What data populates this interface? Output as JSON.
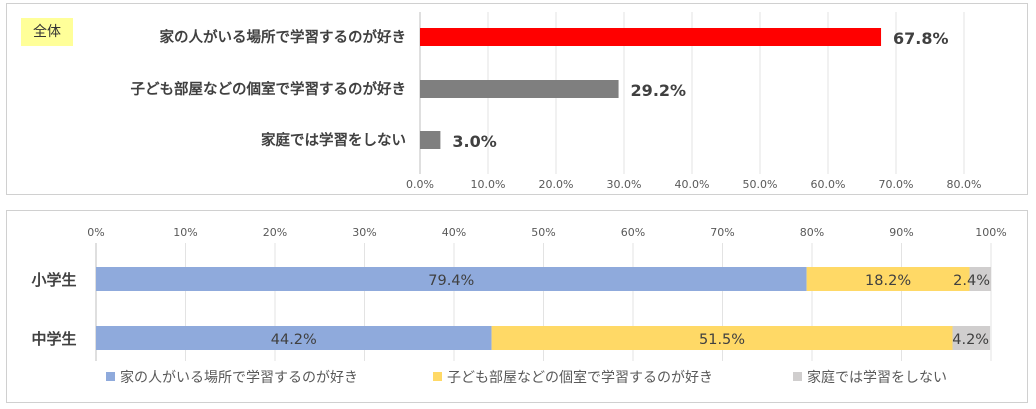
{
  "chart_data": [
    {
      "type": "bar",
      "orientation": "horizontal",
      "badge": "全体",
      "categories": [
        "家の人がいる場所で学習するのが好き",
        "子ども部屋などの個室で学習するのが好き",
        "家庭では学習をしない"
      ],
      "values": [
        67.8,
        29.2,
        3.0
      ],
      "value_labels": [
        "67.8%",
        "29.2%",
        "3.0%"
      ],
      "colors": [
        "#ff0000",
        "#7f7f7f",
        "#7f7f7f"
      ],
      "xlim": [
        0,
        80
      ],
      "ticks": [
        "0.0%",
        "10.0%",
        "20.0%",
        "30.0%",
        "40.0%",
        "50.0%",
        "60.0%",
        "70.0%",
        "80.0%"
      ],
      "grid": true
    },
    {
      "type": "bar",
      "orientation": "horizontal",
      "stacked": true,
      "categories": [
        "小学生",
        "中学生"
      ],
      "series": [
        {
          "name": "家の人がいる場所で学習するのが好き",
          "values": [
            79.4,
            44.2
          ],
          "labels": [
            "79.4%",
            "44.2%"
          ],
          "color": "#8faadc"
        },
        {
          "name": "子ども部屋などの個室で学習するのが好き",
          "values": [
            18.2,
            51.5
          ],
          "labels": [
            "18.2%",
            "51.5%"
          ],
          "color": "#ffd966"
        },
        {
          "name": "家庭では学習をしない",
          "values": [
            2.4,
            4.2
          ],
          "labels": [
            "2.4%",
            "4.2%"
          ],
          "color": "#d0cece"
        }
      ],
      "xlim": [
        0,
        100
      ],
      "ticks": [
        "0%",
        "10%",
        "20%",
        "30%",
        "40%",
        "50%",
        "60%",
        "70%",
        "80%",
        "90%",
        "100%"
      ],
      "legend_position": "bottom",
      "grid": true
    }
  ]
}
